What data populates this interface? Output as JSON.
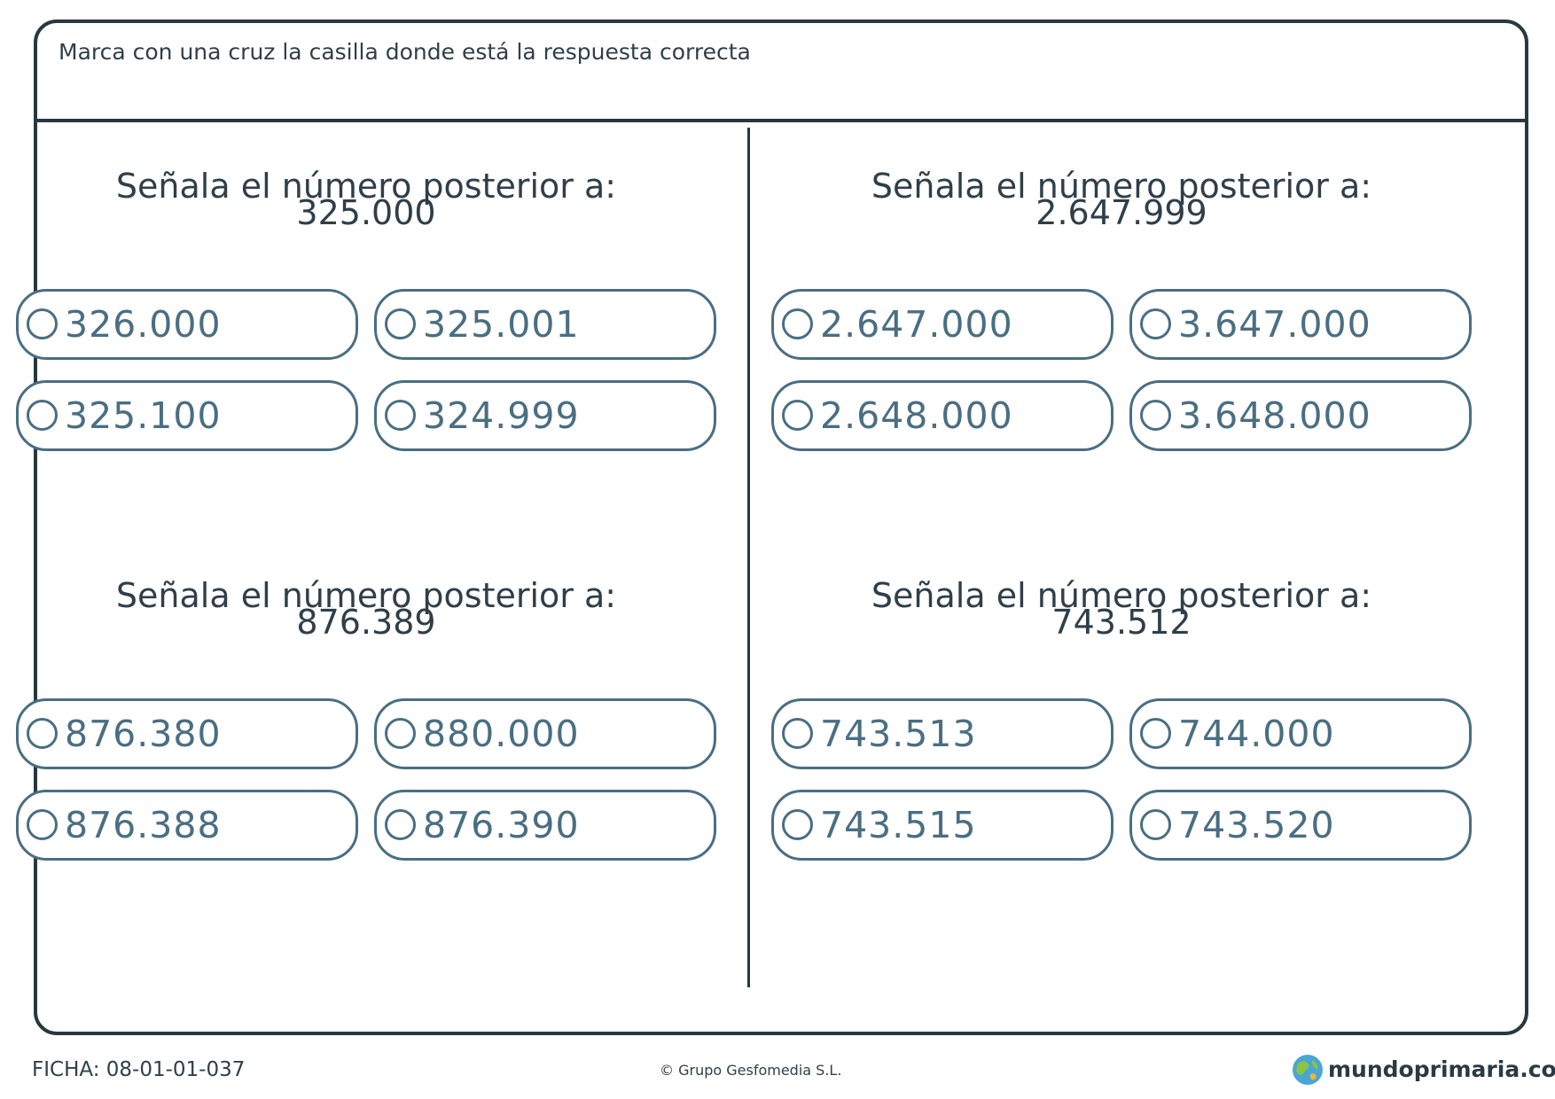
{
  "instruction": "Marca con una cruz la casilla donde está la respuesta correcta",
  "exercises": [
    {
      "prompt": "Señala el número posterior a:",
      "number": "325.000",
      "options": [
        "326.000",
        "325.001",
        "325.100",
        "324.999"
      ]
    },
    {
      "prompt": "Señala el número posterior a:",
      "number": "2.647.999",
      "options": [
        "2.647.000",
        "3.647.000",
        "2.648.000",
        "3.648.000"
      ]
    },
    {
      "prompt": "Señala el número posterior a:",
      "number": "876.389",
      "options": [
        "876.380",
        "880.000",
        "876.388",
        "876.390"
      ]
    },
    {
      "prompt": "Señala el número posterior a:",
      "number": "743.512",
      "options": [
        "743.513",
        "744.000",
        "743.515",
        "743.520"
      ]
    }
  ],
  "footer": {
    "code": "FICHA: 08-01-01-037",
    "copyright": "© Grupo Gesfomedia S.L.",
    "brand": "mundoprimaria.com"
  },
  "colors": {
    "border": "#28383f",
    "option": "#4a6e82",
    "text": "#2f3f49"
  }
}
